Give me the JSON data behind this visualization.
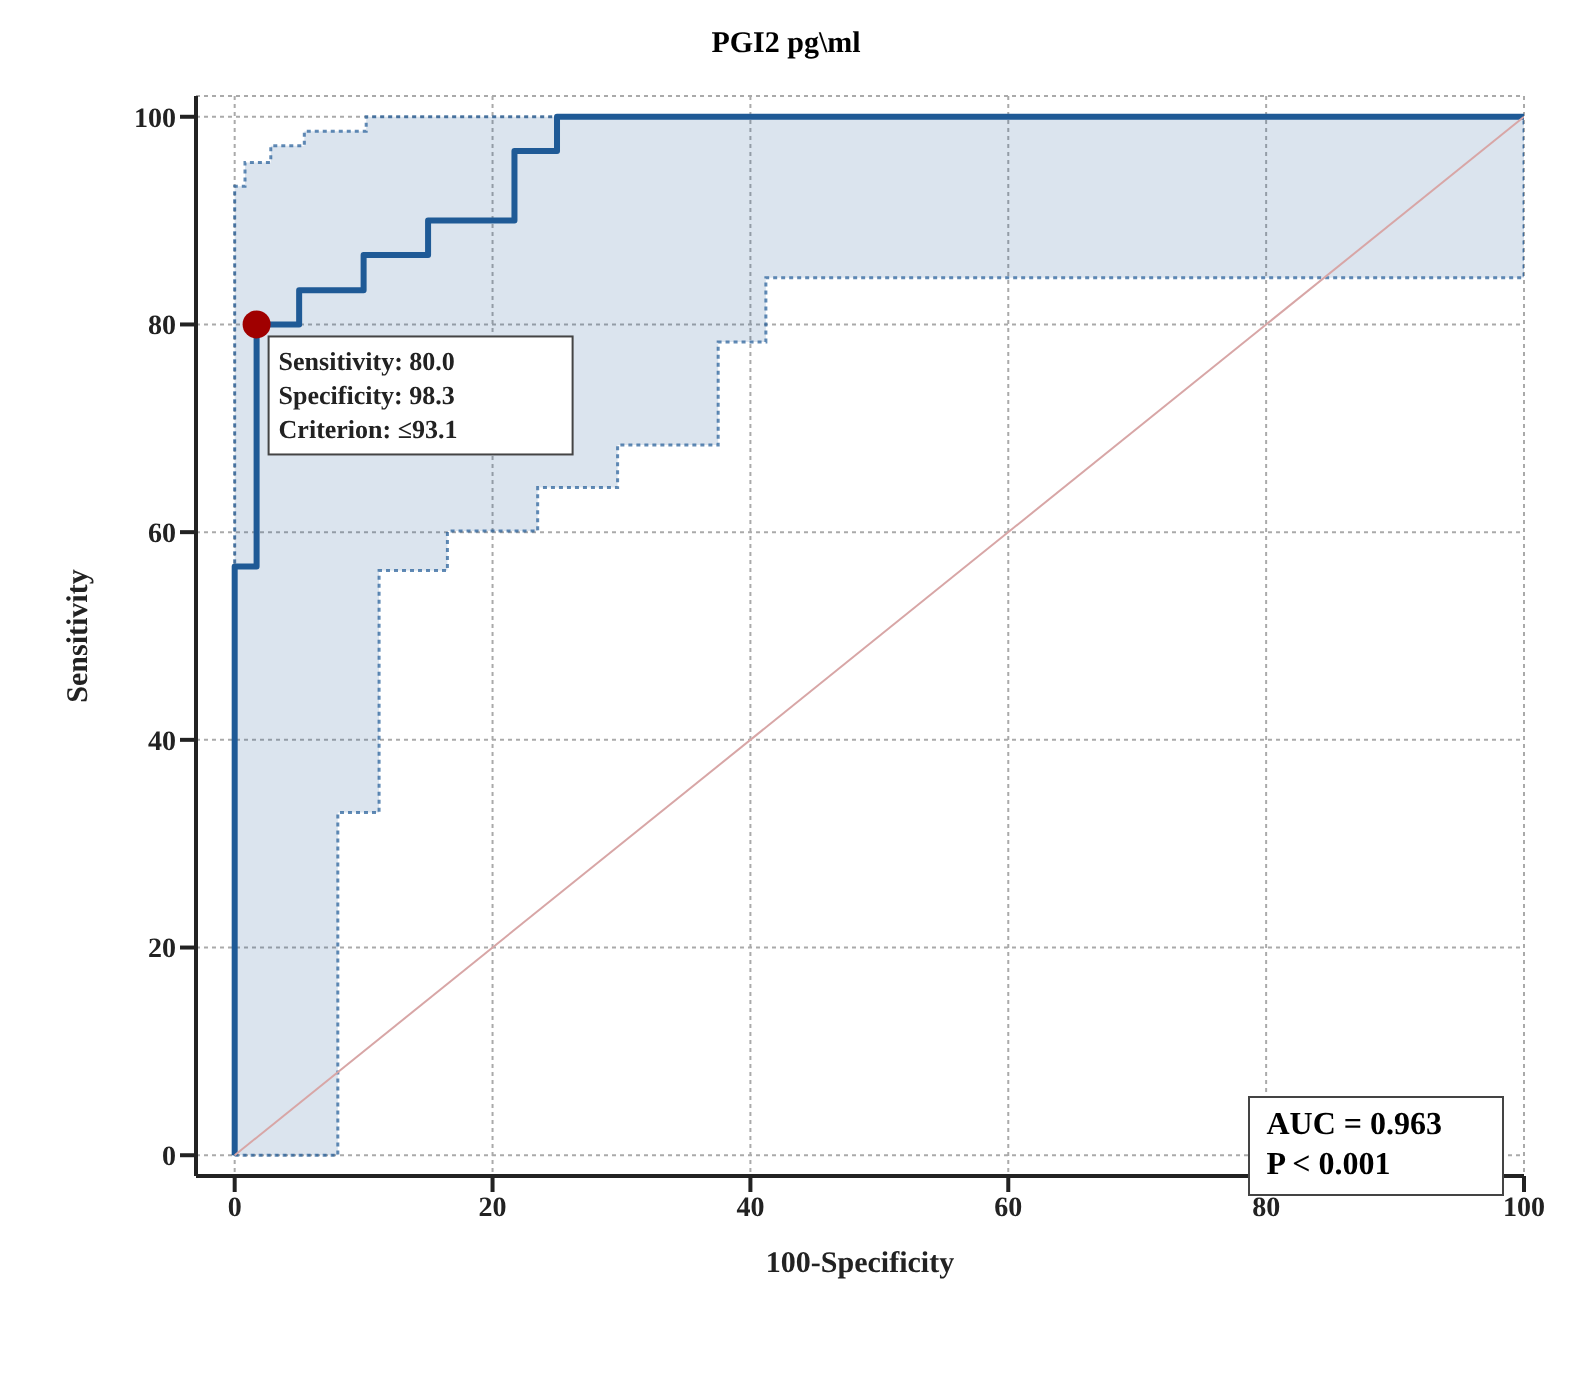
{
  "chart_data": {
    "type": "step",
    "title": "PGI2 pg\\ml",
    "xlabel": "100-Specificity",
    "ylabel": "Sensitivity",
    "xlim": [
      -3,
      100
    ],
    "ylim": [
      -2,
      102
    ],
    "xticks": [
      0,
      20,
      40,
      60,
      80,
      100
    ],
    "yticks": [
      0,
      20,
      40,
      60,
      80,
      100
    ],
    "grid": true,
    "line_style": "solid",
    "series": [
      {
        "color": "#1f5a96",
        "x": [
          0,
          0,
          0.8,
          1.7,
          2.8,
          5,
          5.4,
          8,
          10,
          10.2,
          11.2,
          15,
          16.5,
          21.7,
          23.5,
          25,
          29.7,
          37.5,
          41.2,
          100,
          100
        ],
        "values": [
          0,
          56.7,
          56.7,
          80,
          80,
          83.3,
          83.3,
          83.3,
          86.7,
          86.7,
          86.7,
          90,
          90,
          96.7,
          96.7,
          100,
          100,
          100,
          100,
          100,
          100
        ],
        "lower": [
          0,
          0,
          0,
          0,
          0,
          0,
          0,
          33,
          33,
          33,
          56.3,
          56.3,
          60.1,
          60.1,
          64.3,
          64.3,
          68.4,
          78.3,
          84.5,
          84.5,
          100
        ],
        "upper": [
          0,
          93.3,
          95.6,
          95.6,
          97.2,
          97.2,
          98.6,
          98.6,
          98.6,
          100,
          100,
          100,
          100,
          100,
          100,
          100,
          100,
          100,
          100,
          100,
          100
        ]
      },
      {
        "type": "line",
        "color": "#d8a6a6",
        "x": [
          0,
          100
        ],
        "values": [
          0,
          100
        ]
      },
      {
        "type": "scatter",
        "color": "#a00000",
        "marker": "circle",
        "x": [
          1.7
        ],
        "values": [
          80
        ]
      }
    ],
    "annotations": [
      {
        "text": "Sensitivity: 80.0\nSpecificity: 98.3\nCriterion: ≤93.1",
        "x": 1.7,
        "y": 80
      },
      "AUC = 0.963\nP < 0.001"
    ]
  }
}
